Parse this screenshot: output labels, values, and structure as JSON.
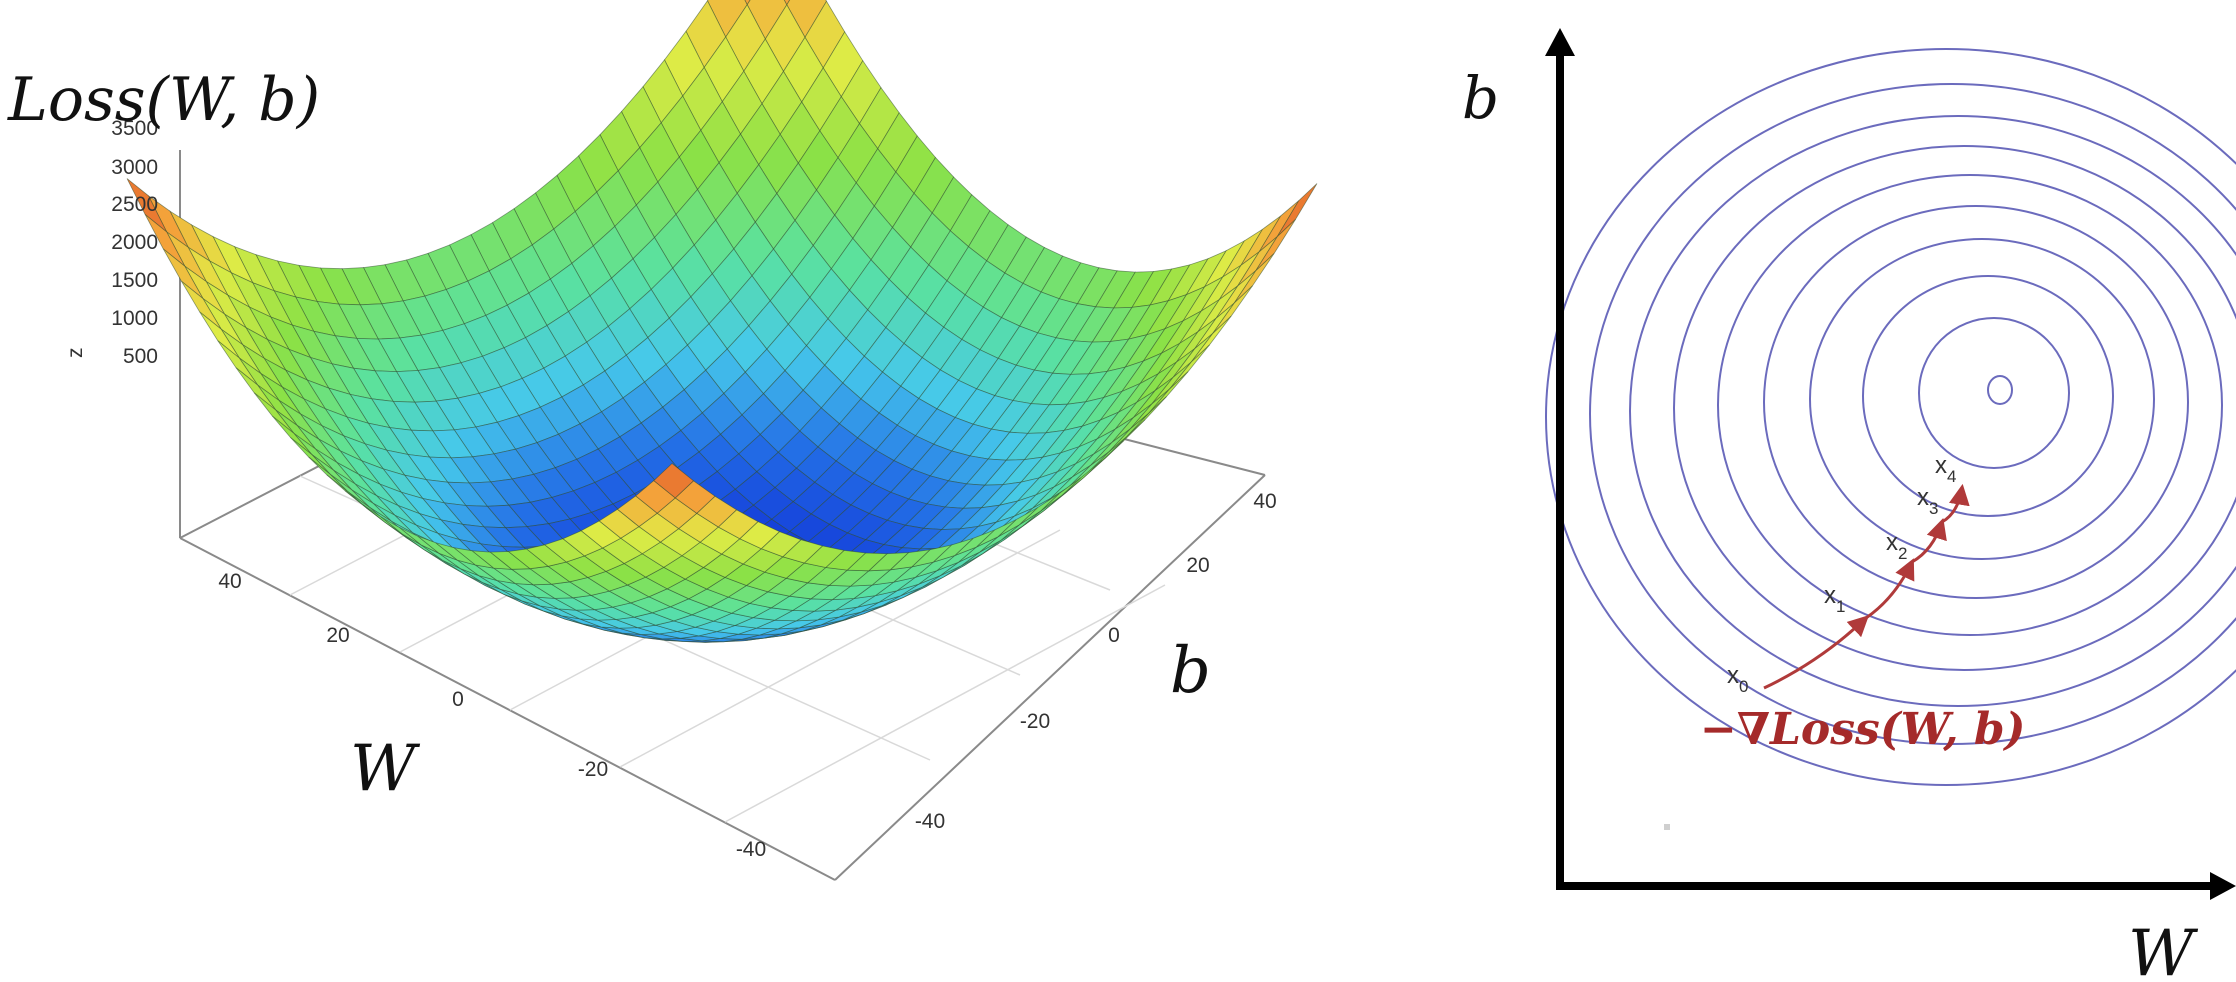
{
  "left_plot": {
    "z_title": "Loss(W, b)",
    "z_axis_label": "z",
    "z_ticks": [
      "3500",
      "3000",
      "2500",
      "2000",
      "1500",
      "1000",
      "500"
    ],
    "w_axis_label": "W",
    "w_ticks": [
      "40",
      "20",
      "0",
      "-20",
      "-40"
    ],
    "b_axis_label": "b",
    "b_ticks": [
      "40",
      "20",
      "0",
      "-20",
      "-40"
    ]
  },
  "right_plot": {
    "y_axis_label": "b",
    "x_axis_label": "W",
    "gradient_label": "−∇Loss(W, b)",
    "iterates": [
      {
        "base": "x",
        "sub": "0"
      },
      {
        "base": "x",
        "sub": "1"
      },
      {
        "base": "x",
        "sub": "2"
      },
      {
        "base": "x",
        "sub": "3"
      },
      {
        "base": "x",
        "sub": "4"
      }
    ],
    "contour_color": "#6b6bbd",
    "path_color": "#b03a3a"
  }
}
